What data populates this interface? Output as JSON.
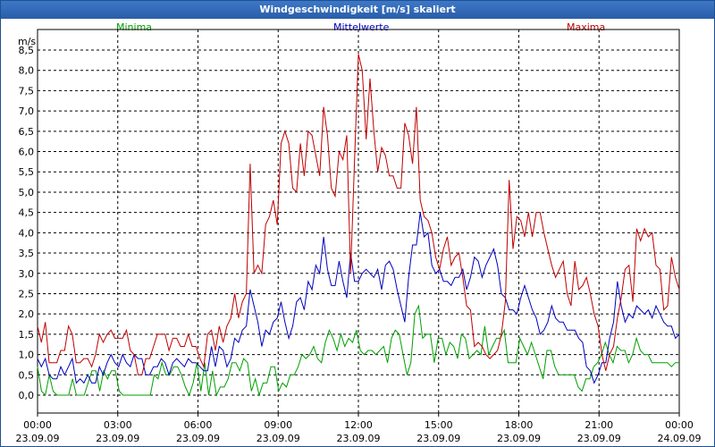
{
  "window": {
    "title": "Windgeschwindigkeit [m/s] skaliert"
  },
  "chart_data": {
    "type": "line",
    "title": "Windgeschwindigkeit [m/s] skaliert",
    "ylabel": "m/s",
    "xlabel": "",
    "ylim": [
      -0.3,
      8.7
    ],
    "xlim": [
      0,
      24
    ],
    "grid": true,
    "legend_position": "top",
    "y_ticks": [
      "0,0",
      "0,5",
      "1,0",
      "1,5",
      "2,0",
      "2,5",
      "3,0",
      "3,5",
      "4,0",
      "4,5",
      "5,0",
      "5,5",
      "6,0",
      "6,5",
      "7,0",
      "7,5",
      "8,0",
      "8,5"
    ],
    "x_ticks": [
      {
        "time": "00:00",
        "date": "23.09.09"
      },
      {
        "time": "03:00",
        "date": "23.09.09"
      },
      {
        "time": "06:00",
        "date": "23.09.09"
      },
      {
        "time": "09:00",
        "date": "23.09.09"
      },
      {
        "time": "12:00",
        "date": "23.09.09"
      },
      {
        "time": "15:00",
        "date": "23.09.09"
      },
      {
        "time": "18:00",
        "date": "23.09.09"
      },
      {
        "time": "21:00",
        "date": "23.09.09"
      },
      {
        "time": "00:00",
        "date": "24.09.09"
      }
    ],
    "series": [
      {
        "name": "Minima",
        "color": "#00a000",
        "values": [
          0.7,
          0.1,
          0,
          0.5,
          0.1,
          0,
          0,
          0,
          0,
          0.4,
          0,
          0,
          0,
          0.3,
          0.6,
          0.6,
          0.1,
          0.6,
          0.4,
          0.6,
          0.6,
          0.1,
          0,
          0,
          0,
          0,
          0,
          0,
          0,
          0,
          0.5,
          0.4,
          0.8,
          0.5,
          0.5,
          0.7,
          0.7,
          0.5,
          0.2,
          0,
          0.3,
          0.8,
          0.1,
          0.8,
          0,
          0.6,
          0,
          0.2,
          0.2,
          0.4,
          0.8,
          0.8,
          0.6,
          0.9,
          0.8,
          0.1,
          0.4,
          0,
          0.3,
          0.3,
          0.7,
          0.7,
          0.1,
          0.3,
          0.2,
          0.5,
          0.5,
          0.7,
          1,
          0.9,
          1,
          1.2,
          0.9,
          0.8,
          1.3,
          1.6,
          1.4,
          1.1,
          1.5,
          1.2,
          1.4,
          1.3,
          1.6,
          1.1,
          1,
          1.1,
          1.1,
          1,
          1.1,
          1.2,
          0.8,
          1.4,
          1.6,
          1.5,
          1,
          0.5,
          0.8,
          2,
          2.2,
          1.4,
          1.5,
          1.5,
          0.8,
          1.4,
          1.4,
          1,
          1.3,
          1.2,
          0.9,
          1.5,
          1.4,
          0.9,
          1,
          1.1,
          1,
          1.7,
          1,
          1.2,
          1.4,
          1.4,
          1.6,
          0.8,
          0.8,
          0.8,
          1.4,
          1.2,
          1,
          1.3,
          1,
          0.7,
          0.4,
          1.1,
          1.1,
          0.7,
          0.5,
          0.5,
          0.5,
          0.5,
          0.5,
          0.2,
          0.1,
          0.4,
          0.4,
          0.7,
          0.8,
          1,
          1.3,
          1,
          0.8,
          1.2,
          1.1,
          1.1,
          0.8,
          1,
          1.4,
          1.1,
          1,
          1,
          0.8,
          0.8,
          0.8,
          0.8,
          0.8,
          0.7,
          0.8,
          0.8
        ]
      },
      {
        "name": "Mittelwerte",
        "color": "#0000c0",
        "values": [
          0.9,
          0.7,
          0.9,
          0.5,
          0.4,
          0.4,
          0.7,
          0.5,
          0.7,
          0.9,
          0.3,
          0.4,
          0.3,
          0.5,
          0.3,
          0.3,
          0.7,
          0.5,
          0.8,
          1,
          0.8,
          0.7,
          1,
          0.8,
          0.7,
          1,
          0.9,
          0.9,
          0.5,
          0.5,
          0.7,
          0.7,
          0.9,
          0.8,
          0.5,
          0.8,
          0.9,
          0.8,
          0.7,
          0.9,
          0.8,
          0.8,
          0.7,
          0.6,
          0.6,
          1.2,
          0.7,
          1.2,
          1.1,
          0.7,
          0.9,
          1.4,
          1.3,
          1.6,
          1.7,
          2.6,
          2.2,
          1.8,
          1.2,
          1.6,
          1.5,
          1.8,
          1.9,
          2.3,
          1.8,
          1.4,
          1.7,
          2.3,
          2.4,
          2.1,
          2.8,
          2.6,
          3.2,
          3,
          3.9,
          3.1,
          2.7,
          2.7,
          3.3,
          2.8,
          2.4,
          3.5,
          2.8,
          2.8,
          3,
          3.1,
          3,
          2.9,
          3.1,
          2.6,
          3.2,
          3.3,
          3.1,
          2.6,
          2.2,
          1.8,
          2.9,
          3.7,
          3.7,
          4.5,
          3.9,
          4,
          3.2,
          3,
          3.1,
          2.8,
          2.8,
          2.7,
          2.9,
          2.9,
          3.1,
          2.6,
          2.9,
          3.4,
          3.3,
          2.9,
          3.2,
          3.4,
          3.6,
          3.2,
          2.5,
          2.4,
          2.1,
          2.1,
          2,
          2.4,
          2.7,
          2.4,
          2.1,
          1.9,
          1.5,
          1.6,
          1.8,
          2.2,
          1.9,
          1.8,
          1.8,
          1.6,
          1.6,
          1.6,
          1.4,
          1.3,
          0.7,
          0.6,
          0.3,
          0.5,
          0.8,
          0.8,
          1.4,
          1.8,
          2.8,
          2.2,
          1.8,
          2,
          1.9,
          2.2,
          2.1,
          2,
          2.1,
          1.9,
          2.2,
          2,
          1.8,
          1.7,
          1.7,
          1.4,
          1.5
        ]
      },
      {
        "name": "Maxima",
        "color": "#c00000",
        "values": [
          1.7,
          1.3,
          1.8,
          0.8,
          0.8,
          0.8,
          1.1,
          1.1,
          1.7,
          1.5,
          0.8,
          0.8,
          0.9,
          0.9,
          0.7,
          1,
          1.5,
          1.3,
          1.5,
          1.6,
          1.4,
          1.4,
          1.4,
          1.6,
          1.1,
          1,
          0.5,
          0.5,
          0.9,
          0.9,
          1.2,
          1.5,
          1.5,
          1.5,
          1.1,
          1.4,
          1.4,
          1.2,
          1.2,
          1.5,
          1.2,
          1.2,
          0.9,
          0.7,
          1.5,
          1.6,
          1.1,
          1.7,
          1.3,
          1.7,
          1.9,
          2.5,
          1.9,
          2.3,
          2.5,
          5.7,
          3,
          3.2,
          3,
          4.2,
          4.4,
          4.8,
          4.2,
          6.2,
          6.5,
          6.2,
          5.1,
          5,
          6.2,
          5.4,
          6.5,
          6.4,
          5.9,
          5.4,
          7.1,
          6.4,
          5.1,
          4.9,
          6,
          5.8,
          6.4,
          3,
          5.8,
          8.4,
          8,
          6.3,
          7.8,
          6.5,
          5.5,
          6.1,
          5.9,
          5.4,
          5.4,
          5.1,
          5.1,
          6.7,
          6.4,
          5.7,
          7.1,
          4.8,
          4.4,
          4.3,
          4,
          3.4,
          3.1,
          3.6,
          3.9,
          3.2,
          3.4,
          3.5,
          2.9,
          2.2,
          2.1,
          1.2,
          1.3,
          1.2,
          1,
          0.9,
          1,
          1.1,
          1.5,
          2.3,
          5.3,
          3.6,
          4.4,
          4.3,
          3.9,
          4.5,
          3.9,
          4.5,
          4.5,
          4,
          3.6,
          3.2,
          2.9,
          3.1,
          3.3,
          2.5,
          2.2,
          3.3,
          2.6,
          2.7,
          2.9,
          2.5,
          2,
          1.7,
          1,
          0.6,
          1,
          1.2,
          1.9,
          2.4,
          3.1,
          3.2,
          2.3,
          4.1,
          3.8,
          4.1,
          3.9,
          4,
          3.2,
          3.1,
          2.1,
          2.2,
          3.4,
          2.9,
          2.6
        ]
      }
    ]
  }
}
